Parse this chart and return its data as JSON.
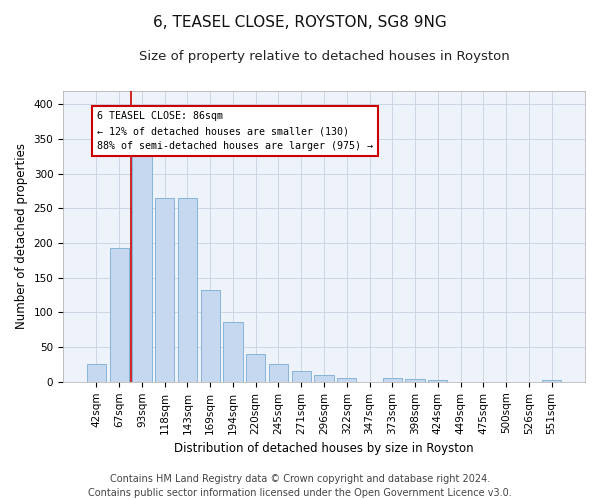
{
  "title1": "6, TEASEL CLOSE, ROYSTON, SG8 9NG",
  "title2": "Size of property relative to detached houses in Royston",
  "xlabel": "Distribution of detached houses by size in Royston",
  "ylabel": "Number of detached properties",
  "categories": [
    "42sqm",
    "67sqm",
    "93sqm",
    "118sqm",
    "143sqm",
    "169sqm",
    "194sqm",
    "220sqm",
    "245sqm",
    "271sqm",
    "296sqm",
    "322sqm",
    "347sqm",
    "373sqm",
    "398sqm",
    "424sqm",
    "449sqm",
    "475sqm",
    "500sqm",
    "526sqm",
    "551sqm"
  ],
  "values": [
    25,
    193,
    328,
    265,
    265,
    133,
    86,
    40,
    26,
    15,
    10,
    5,
    0,
    5,
    4,
    3,
    0,
    0,
    0,
    0,
    3
  ],
  "bar_color": "#c5d8f0",
  "bar_edge_color": "#7aadd4",
  "bar_width": 0.85,
  "vline_x": 1.5,
  "vline_color": "#cc0000",
  "annotation_text": "6 TEASEL CLOSE: 86sqm\n← 12% of detached houses are smaller (130)\n88% of semi-detached houses are larger (975) →",
  "annotation_box_color": "#ffffff",
  "annotation_box_edge": "#cc0000",
  "ylim": [
    0,
    420
  ],
  "yticks": [
    0,
    50,
    100,
    150,
    200,
    250,
    300,
    350,
    400
  ],
  "grid_color": "#c8d0e0",
  "footer1": "Contains HM Land Registry data © Crown copyright and database right 2024.",
  "footer2": "Contains public sector information licensed under the Open Government Licence v3.0.",
  "bg_color": "#edf2fb",
  "title_fontsize": 11,
  "subtitle_fontsize": 9.5,
  "label_fontsize": 8.5,
  "tick_fontsize": 7.5,
  "footer_fontsize": 7
}
